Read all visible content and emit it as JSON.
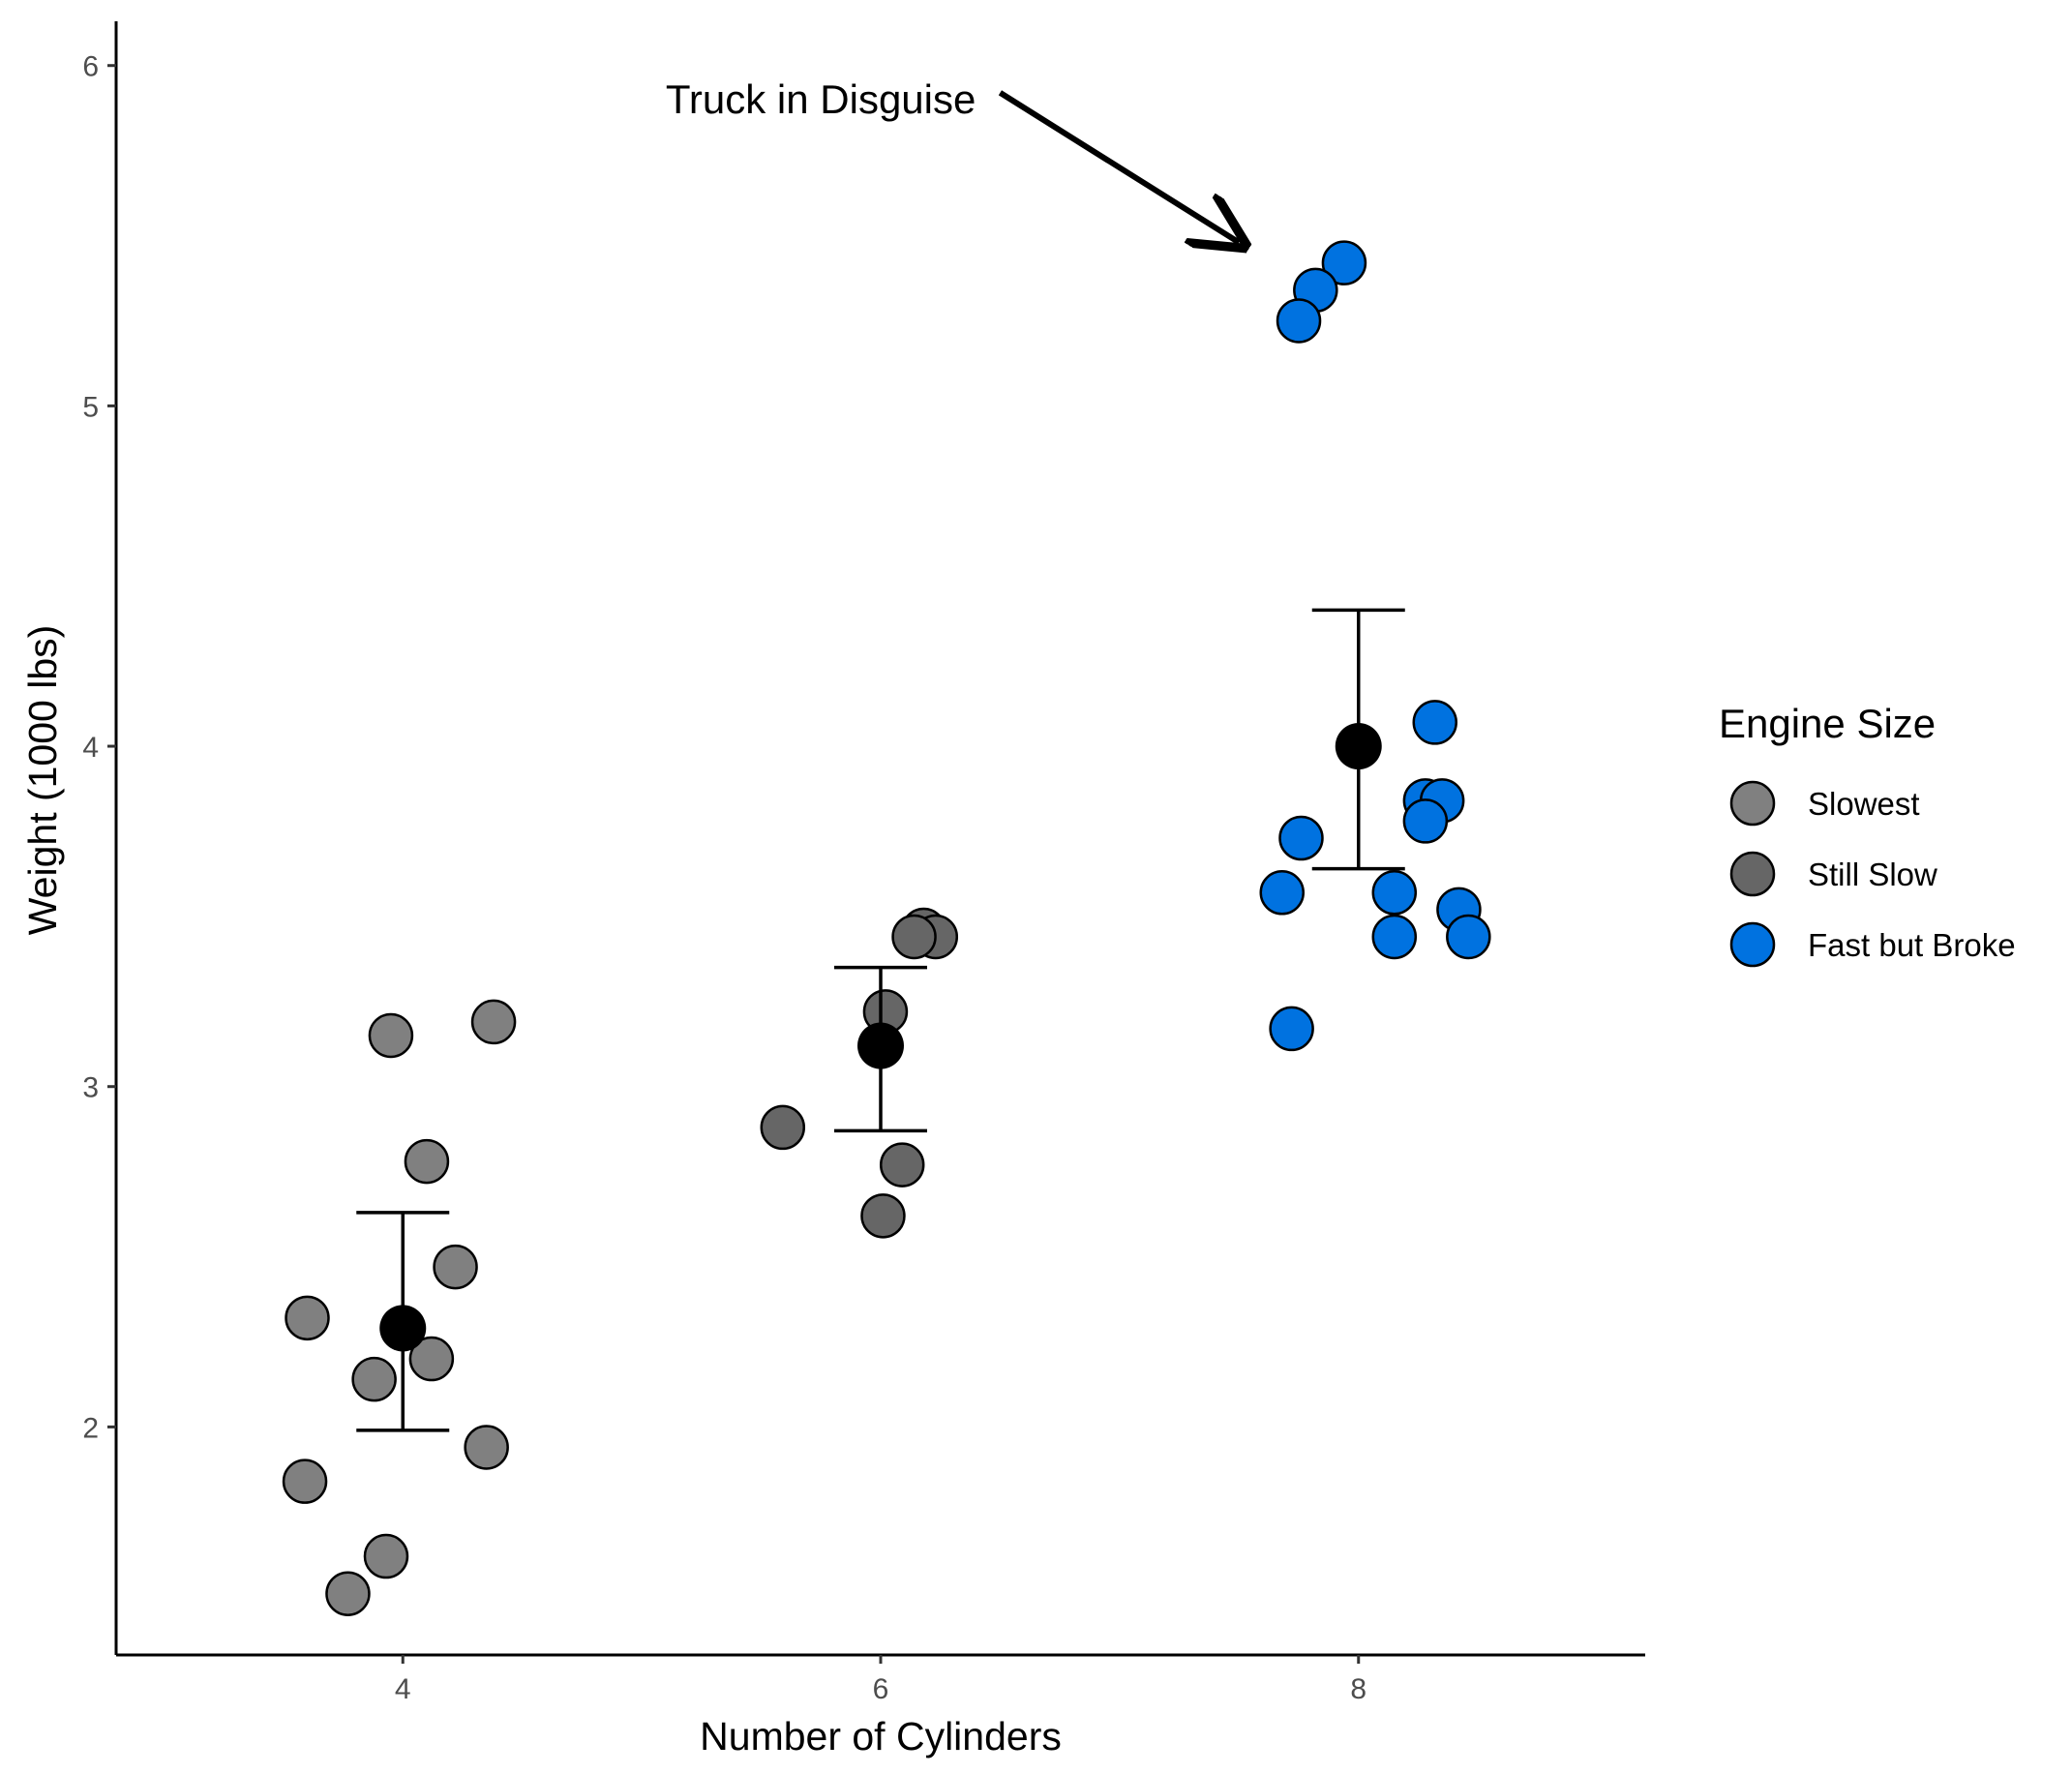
{
  "chart_data": {
    "type": "scatter",
    "xlabel": "Number of Cylinders",
    "ylabel": "Weight (1000 lbs)",
    "xlim": [
      2.8,
      9.2
    ],
    "ylim": [
      1.33,
      6.13
    ],
    "x_ticks": [
      4,
      6,
      8
    ],
    "y_ticks": [
      2,
      3,
      4,
      5,
      6
    ],
    "x_tick_labels": [
      "4",
      "6",
      "8"
    ],
    "y_tick_labels": [
      "2",
      "3",
      "4",
      "5",
      "6"
    ],
    "grid": false,
    "legend": {
      "title": "Engine Size",
      "position": "right",
      "entries": [
        {
          "label": "Slowest",
          "color": "#808080"
        },
        {
          "label": "Still Slow",
          "color": "#666666"
        },
        {
          "label": "Fast but Broke",
          "color": "#0072e0"
        }
      ]
    },
    "series": [
      {
        "name": "Slowest",
        "color": "#808080",
        "points": [
          [
            3.95,
            3.15
          ],
          [
            4.38,
            3.19
          ],
          [
            4.1,
            2.78
          ],
          [
            4.22,
            2.47
          ],
          [
            3.6,
            2.32
          ],
          [
            3.88,
            2.14
          ],
          [
            4.12,
            2.2
          ],
          [
            4.35,
            1.94
          ],
          [
            3.59,
            1.84
          ],
          [
            3.93,
            1.62
          ],
          [
            3.77,
            1.51
          ]
        ]
      },
      {
        "name": "Still Slow",
        "color": "#666666",
        "points": [
          [
            6.18,
            3.46
          ],
          [
            6.23,
            3.44
          ],
          [
            6.14,
            3.44
          ],
          [
            6.02,
            3.22
          ],
          [
            5.59,
            2.88
          ],
          [
            6.09,
            2.77
          ],
          [
            6.01,
            2.62
          ]
        ]
      },
      {
        "name": "Fast but Broke",
        "color": "#0072e0",
        "points": [
          [
            7.94,
            5.42
          ],
          [
            7.82,
            5.34
          ],
          [
            7.75,
            5.25
          ],
          [
            8.32,
            4.07
          ],
          [
            8.28,
            3.84
          ],
          [
            8.35,
            3.84
          ],
          [
            8.28,
            3.78
          ],
          [
            7.76,
            3.73
          ],
          [
            7.68,
            3.57
          ],
          [
            8.15,
            3.57
          ],
          [
            8.42,
            3.52
          ],
          [
            8.15,
            3.44
          ],
          [
            8.46,
            3.44
          ],
          [
            7.72,
            3.17
          ]
        ]
      }
    ],
    "summary": {
      "name": "mean",
      "color": "#000000",
      "points": [
        {
          "x": 4,
          "y": 2.29,
          "ymin": 1.99,
          "ymax": 2.63
        },
        {
          "x": 6,
          "y": 3.12,
          "ymin": 2.87,
          "ymax": 3.35
        },
        {
          "x": 8,
          "y": 4.0,
          "ymin": 3.64,
          "ymax": 4.4
        }
      ]
    },
    "annotations": [
      {
        "text": "Truck in Disguise",
        "x": 5.1,
        "y": 5.9,
        "arrow_from": [
          6.5,
          5.92
        ],
        "arrow_to": [
          7.5,
          5.48
        ]
      }
    ]
  }
}
